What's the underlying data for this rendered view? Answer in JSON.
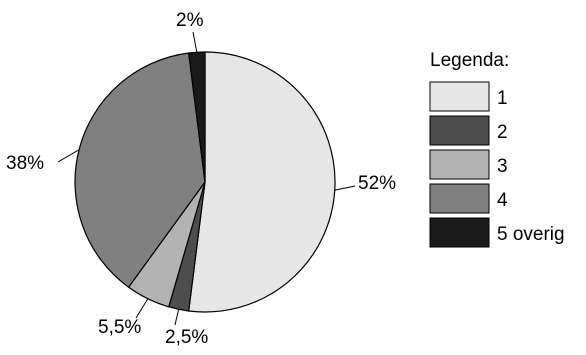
{
  "chart_data": {
    "type": "pie",
    "title": "",
    "legend_title": "Legenda:",
    "legend_position": "right",
    "start_angle_deg": 0,
    "direction": "clockwise",
    "slices": [
      {
        "label": "1",
        "value": 52,
        "value_label": "52%",
        "color": "#e6e6e6"
      },
      {
        "label": "2",
        "value": 2.5,
        "value_label": "2,5%",
        "color": "#4d4d4d"
      },
      {
        "label": "3",
        "value": 5.5,
        "value_label": "5,5%",
        "color": "#b3b3b3"
      },
      {
        "label": "4",
        "value": 38,
        "value_label": "38%",
        "color": "#808080"
      },
      {
        "label": "5 overig",
        "value": 2,
        "value_label": "2%",
        "color": "#1a1a1a"
      }
    ]
  }
}
